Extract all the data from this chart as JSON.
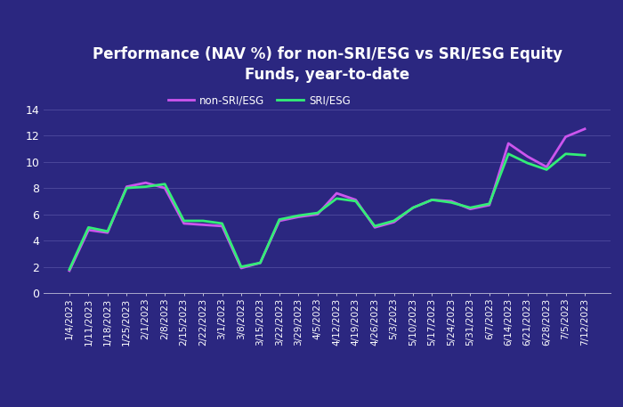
{
  "title": "Performance (NAV %) for non-SRI/ESG vs SRI/ESG Equity\nFunds, year-to-date",
  "background_color": "#2b2780",
  "plot_bg_color": "#2b2780",
  "text_color": "#ffffff",
  "grid_color": "#4a469a",
  "line_color_non_sri": "#cc55ee",
  "line_color_sri": "#33ee77",
  "legend_non_sri": "non-SRI/ESG",
  "legend_sri": "SRI/ESG",
  "dates": [
    "1/4/2023",
    "1/11/2023",
    "1/18/2023",
    "1/25/2023",
    "2/1/2023",
    "2/8/2023",
    "2/15/2023",
    "2/22/2023",
    "3/1/2023",
    "3/8/2023",
    "3/15/2023",
    "3/22/2023",
    "3/29/2023",
    "4/5/2023",
    "4/12/2023",
    "4/19/2023",
    "4/26/2023",
    "5/3/2023",
    "5/10/2023",
    "5/17/2023",
    "5/24/2023",
    "5/31/2023",
    "6/7/2023",
    "6/14/2023",
    "6/21/2023",
    "6/28/2023",
    "7/5/2023",
    "7/12/2023"
  ],
  "non_sri_values": [
    1.7,
    4.8,
    4.6,
    8.1,
    8.4,
    8.0,
    5.3,
    5.2,
    5.1,
    1.9,
    2.3,
    5.5,
    5.8,
    6.0,
    7.6,
    7.1,
    5.0,
    5.4,
    6.5,
    7.1,
    7.0,
    6.4,
    6.7,
    11.4,
    10.4,
    9.6,
    11.9,
    12.5
  ],
  "sri_values": [
    1.8,
    5.0,
    4.7,
    8.0,
    8.1,
    8.3,
    5.5,
    5.5,
    5.3,
    2.0,
    2.3,
    5.6,
    5.9,
    6.1,
    7.2,
    7.0,
    5.1,
    5.5,
    6.5,
    7.1,
    6.9,
    6.5,
    6.8,
    10.6,
    9.9,
    9.4,
    10.6,
    10.5
  ],
  "ylim": [
    0,
    15.5
  ],
  "yticks": [
    0,
    2,
    4,
    6,
    8,
    10,
    12,
    14
  ],
  "line_width": 2.0,
  "title_fontsize": 12,
  "tick_fontsize": 7.5,
  "ytick_fontsize": 9
}
